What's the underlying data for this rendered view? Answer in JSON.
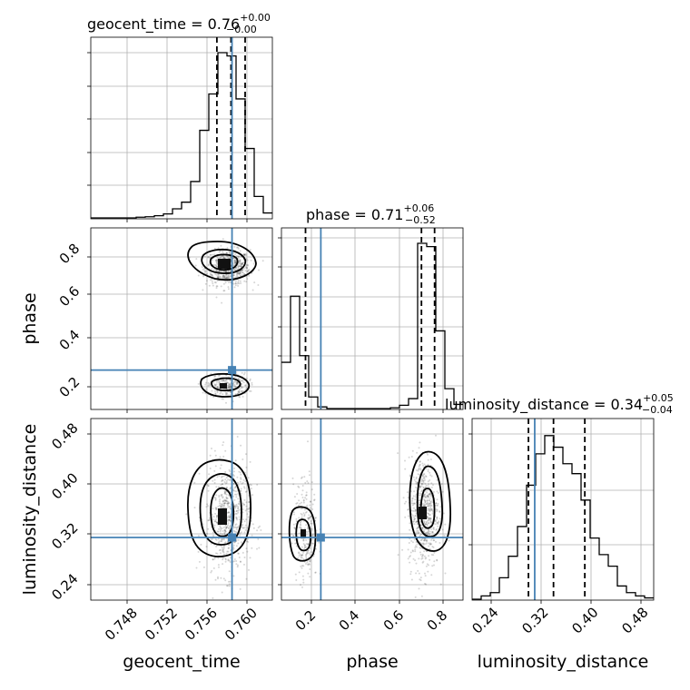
{
  "chart_data": {
    "type": "corner",
    "colors": {
      "truth": "#4682b4",
      "histogram": "#000000",
      "grid": "#b0b0b0",
      "density": "#000000"
    },
    "parameters": [
      {
        "name": "geocent_time",
        "title_main": "geocent_time = 0.76",
        "title_plus": "+0.00",
        "title_minus": "−0.00",
        "range": [
          0.7445,
          0.7625
        ],
        "ticks": [
          0.748,
          0.752,
          0.756,
          0.76
        ],
        "tick_labels": [
          "0.748",
          "0.752",
          "0.756",
          "0.760"
        ],
        "truth": 0.7585,
        "quantiles": [
          0.757,
          0.7584,
          0.7598
        ],
        "hist_edges": [
          0.7445,
          0.7454,
          0.7463,
          0.7472,
          0.7481,
          0.749,
          0.7499,
          0.7508,
          0.7517,
          0.7526,
          0.7535,
          0.7544,
          0.7553,
          0.7562,
          0.7571,
          0.758,
          0.7589,
          0.7598,
          0.7607,
          0.7616,
          0.7625
        ],
        "hist_counts": [
          0,
          0,
          0,
          0,
          0,
          0.004,
          0.007,
          0.013,
          0.024,
          0.055,
          0.095,
          0.22,
          0.53,
          0.75,
          1.0,
          0.98,
          0.72,
          0.42,
          0.13,
          0.03
        ]
      },
      {
        "name": "phase",
        "title_main": "phase = 0.71",
        "title_plus": "+0.06",
        "title_minus": "−0.52",
        "range": [
          0.07,
          0.9
        ],
        "ticks": [
          0.2,
          0.4,
          0.6,
          0.8
        ],
        "tick_labels": [
          "0.2",
          "0.4",
          "0.6",
          "0.8"
        ],
        "truth": 0.25,
        "quantiles": [
          0.18,
          0.71,
          0.77
        ],
        "hist_edges": [
          0.07,
          0.1115,
          0.153,
          0.1945,
          0.236,
          0.2775,
          0.319,
          0.3605,
          0.402,
          0.4435,
          0.485,
          0.5265,
          0.568,
          0.6095,
          0.651,
          0.6925,
          0.734,
          0.7755,
          0.817,
          0.8585,
          0.9
        ],
        "hist_counts": [
          0.28,
          0.68,
          0.32,
          0.07,
          0.01,
          0,
          0,
          0,
          0,
          0,
          0,
          0,
          0.005,
          0.02,
          0.06,
          1.0,
          0.98,
          0.47,
          0.12,
          0.025
        ]
      },
      {
        "name": "luminosity_distance",
        "title_main": "luminosity_distance = 0.34",
        "title_plus": "+0.05",
        "title_minus": "−0.04",
        "range": [
          0.21,
          0.5
        ],
        "ticks": [
          0.24,
          0.32,
          0.4,
          0.48
        ],
        "tick_labels": [
          "0.24",
          "0.32",
          "0.40",
          "0.48"
        ],
        "truth": 0.31,
        "quantiles": [
          0.3,
          0.34,
          0.39
        ],
        "hist_edges": [
          0.21,
          0.2245,
          0.239,
          0.2535,
          0.268,
          0.2825,
          0.297,
          0.3115,
          0.326,
          0.3405,
          0.355,
          0.3695,
          0.384,
          0.3985,
          0.413,
          0.4275,
          0.442,
          0.4565,
          0.471,
          0.4855,
          0.5
        ],
        "hist_counts": [
          0,
          0.02,
          0.04,
          0.13,
          0.26,
          0.44,
          0.69,
          0.88,
          0.99,
          0.92,
          0.82,
          0.76,
          0.6,
          0.37,
          0.27,
          0.2,
          0.08,
          0.04,
          0.02,
          0.008
        ]
      }
    ],
    "density_clusters": [
      {
        "pair": "geocent_time-phase",
        "center": [
          0.7581,
          0.718
        ],
        "spread": [
          0.0011,
          0.04
        ],
        "weight": 1.0
      },
      {
        "pair": "geocent_time-phase",
        "center": [
          0.7581,
          0.18
        ],
        "spread": [
          0.001,
          0.028
        ],
        "weight": 0.45
      },
      {
        "pair": "geocent_time-luminosity_distance",
        "center": [
          0.7581,
          0.34
        ],
        "spread": [
          0.0011,
          0.045
        ],
        "weight": 1.0
      },
      {
        "pair": "phase-luminosity_distance",
        "center": [
          0.72,
          0.35
        ],
        "spread": [
          0.035,
          0.045
        ],
        "weight": 1.0
      },
      {
        "pair": "phase-luminosity_distance",
        "center": [
          0.18,
          0.32
        ],
        "spread": [
          0.028,
          0.04
        ],
        "weight": 0.4
      }
    ]
  }
}
